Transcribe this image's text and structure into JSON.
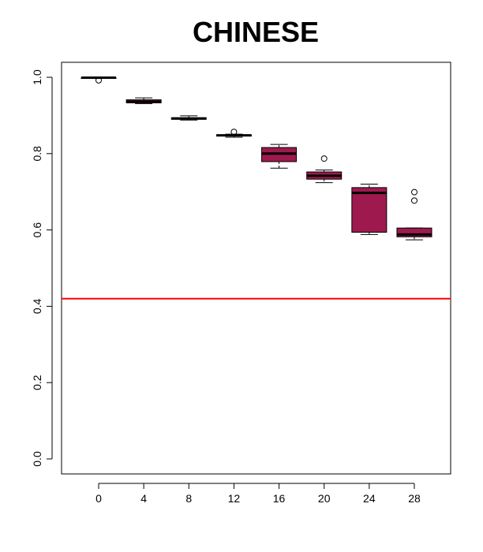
{
  "chart_data": {
    "type": "box",
    "title": "CHINESE",
    "xlabel": "",
    "ylabel": "",
    "x_categories": [
      "0",
      "4",
      "8",
      "12",
      "16",
      "20",
      "24",
      "28"
    ],
    "y_ticks": [
      "0.0",
      "0.2",
      "0.4",
      "0.6",
      "0.8",
      "1.0"
    ],
    "ylim": [
      0,
      1.03
    ],
    "box_color": "#9e1a4e",
    "reference_line": {
      "y": 0.42,
      "color": "#ff0000"
    },
    "boxes": [
      {
        "category": "0",
        "min": 0.998,
        "q1": 0.998,
        "median": 0.999,
        "q3": 0.999,
        "max": 0.999,
        "outliers": [
          0.992
        ]
      },
      {
        "category": "4",
        "min": 0.931,
        "q1": 0.933,
        "median": 0.936,
        "q3": 0.941,
        "max": 0.946,
        "outliers": []
      },
      {
        "category": "8",
        "min": 0.888,
        "q1": 0.89,
        "median": 0.892,
        "q3": 0.894,
        "max": 0.899,
        "outliers": []
      },
      {
        "category": "12",
        "min": 0.843,
        "q1": 0.846,
        "median": 0.848,
        "q3": 0.849,
        "max": 0.851,
        "outliers": [
          0.857
        ]
      },
      {
        "category": "16",
        "min": 0.762,
        "q1": 0.779,
        "median": 0.8,
        "q3": 0.816,
        "max": 0.824,
        "outliers": []
      },
      {
        "category": "20",
        "min": 0.724,
        "q1": 0.733,
        "median": 0.742,
        "q3": 0.752,
        "max": 0.757,
        "outliers": [
          0.787
        ]
      },
      {
        "category": "24",
        "min": 0.588,
        "q1": 0.594,
        "median": 0.697,
        "q3": 0.711,
        "max": 0.72,
        "outliers": []
      },
      {
        "category": "28",
        "min": 0.574,
        "q1": 0.582,
        "median": 0.588,
        "q3": 0.605,
        "max": 0.605,
        "outliers": [
          0.677,
          0.699
        ]
      }
    ]
  }
}
